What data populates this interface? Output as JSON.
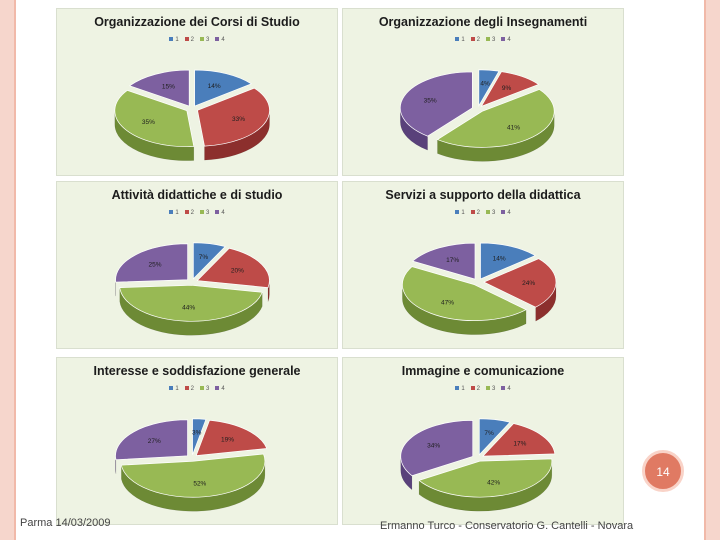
{
  "colors": {
    "series": [
      "#4a7ebb",
      "#be4b48",
      "#98b954",
      "#7d60a0"
    ],
    "dark": [
      "#2f5a8c",
      "#8c2f2d",
      "#6d8a35",
      "#59417a"
    ]
  },
  "legend_labels": [
    "1",
    "2",
    "3",
    "4"
  ],
  "chart_data": [
    {
      "type": "pie",
      "title": "Organizzazione dei Corsi di Studio",
      "categories": [
        "1",
        "2",
        "3",
        "4"
      ],
      "values": [
        14,
        33,
        35,
        15
      ],
      "value_labels": [
        "14%",
        "33%",
        "35%",
        "15%"
      ]
    },
    {
      "type": "pie",
      "title": "Organizzazione degli Insegnamenti",
      "categories": [
        "1",
        "2",
        "3",
        "4"
      ],
      "values": [
        4,
        9,
        41,
        35
      ],
      "value_labels": [
        "4%",
        "9%",
        "41%",
        "35%"
      ]
    },
    {
      "type": "pie",
      "title": "Attività didattiche e di studio",
      "categories": [
        "1",
        "2",
        "3",
        "4"
      ],
      "values": [
        7,
        20,
        44,
        25
      ],
      "value_labels": [
        "7%",
        "20%",
        "44%",
        "25%"
      ]
    },
    {
      "type": "pie",
      "title": "Servizi a supporto della didattica",
      "categories": [
        "1",
        "2",
        "3",
        "4"
      ],
      "values": [
        14,
        24,
        47,
        17
      ],
      "value_labels": [
        "14%",
        "24%",
        "47%",
        "17%"
      ]
    },
    {
      "type": "pie",
      "title": "Interesse e soddisfazione generale",
      "categories": [
        "1",
        "2",
        "3",
        "4"
      ],
      "values": [
        3,
        19,
        52,
        27
      ],
      "value_labels": [
        "3%",
        "19%",
        "52%",
        "27%"
      ]
    },
    {
      "type": "pie",
      "title": "Immagine e comunicazione",
      "categories": [
        "1",
        "2",
        "3",
        "4"
      ],
      "values": [
        7,
        17,
        42,
        34
      ],
      "value_labels": [
        "7%",
        "17%",
        "42%",
        "34%"
      ]
    }
  ],
  "page_number": "14",
  "footer": {
    "date": "Parma 14/03/2009",
    "credit": "Ermanno Turco - Conservatorio G. Cantelli - Novara"
  }
}
